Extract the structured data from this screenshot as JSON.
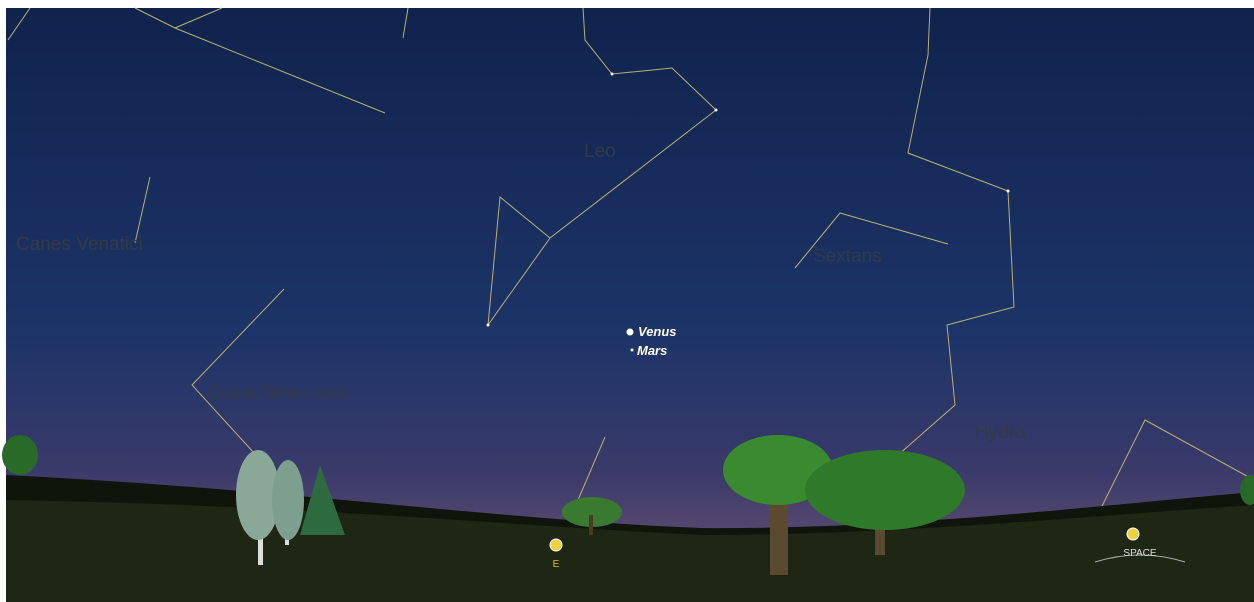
{
  "constellations": [
    "Leo",
    "Canes Venatici",
    "Sextans",
    "Coma Berenices",
    "Hydra"
  ],
  "planets": [
    "Venus",
    "Mars"
  ],
  "markers": [
    "E",
    "SPACE"
  ]
}
